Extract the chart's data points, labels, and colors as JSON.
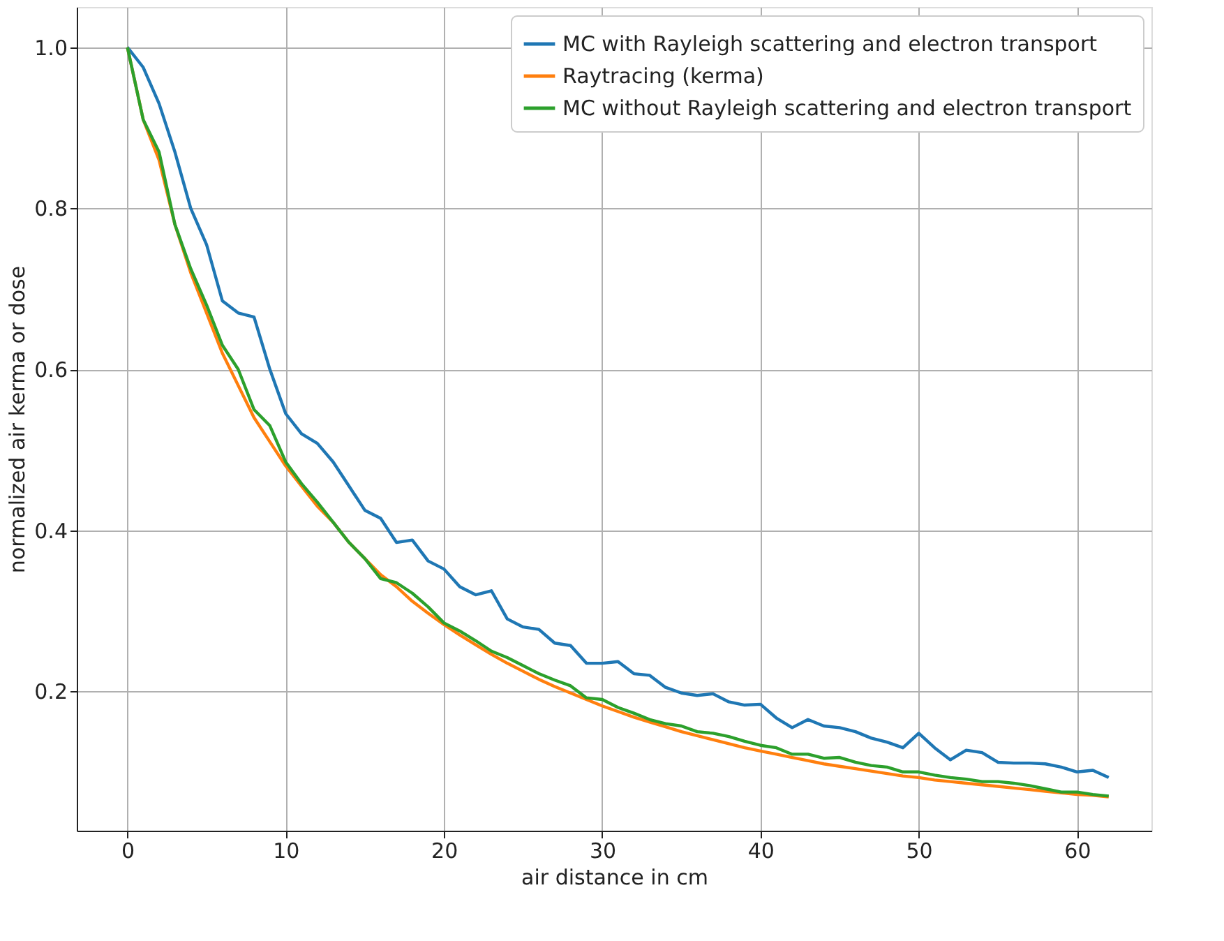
{
  "chart_data": {
    "type": "line",
    "xlabel": "air distance in cm",
    "ylabel": "normalized air kerma or dose",
    "x": [
      0,
      1,
      2,
      3,
      4,
      5,
      6,
      7,
      8,
      9,
      10,
      11,
      12,
      13,
      14,
      15,
      16,
      17,
      18,
      19,
      20,
      21,
      22,
      23,
      24,
      25,
      26,
      27,
      28,
      29,
      30,
      31,
      32,
      33,
      34,
      35,
      36,
      37,
      38,
      39,
      40,
      41,
      42,
      43,
      44,
      45,
      46,
      47,
      48,
      49,
      50,
      51,
      52,
      53,
      54,
      55,
      56,
      57,
      58,
      59,
      60,
      61,
      62
    ],
    "series": [
      {
        "name": "MC with Rayleigh scattering and electron transport",
        "color": "#1f77b4",
        "values": [
          1.0,
          0.975,
          0.93,
          0.87,
          0.8,
          0.755,
          0.685,
          0.67,
          0.665,
          0.6,
          0.545,
          0.52,
          0.508,
          0.485,
          0.455,
          0.425,
          0.415,
          0.385,
          0.388,
          0.362,
          0.352,
          0.33,
          0.32,
          0.325,
          0.29,
          0.28,
          0.277,
          0.26,
          0.257,
          0.235,
          0.235,
          0.237,
          0.222,
          0.22,
          0.205,
          0.198,
          0.195,
          0.197,
          0.187,
          0.183,
          0.184,
          0.167,
          0.155,
          0.165,
          0.157,
          0.155,
          0.15,
          0.142,
          0.137,
          0.13,
          0.148,
          0.13,
          0.115,
          0.127,
          0.124,
          0.112,
          0.111,
          0.111,
          0.11,
          0.106,
          0.1,
          0.102,
          0.093
        ]
      },
      {
        "name": "Raytracing (kerma)",
        "color": "#ff7f0e",
        "values": [
          1.0,
          0.91,
          0.86,
          0.78,
          0.72,
          0.67,
          0.62,
          0.58,
          0.54,
          0.51,
          0.48,
          0.455,
          0.43,
          0.41,
          0.385,
          0.365,
          0.345,
          0.33,
          0.312,
          0.297,
          0.283,
          0.27,
          0.258,
          0.246,
          0.235,
          0.225,
          0.215,
          0.206,
          0.198,
          0.19,
          0.182,
          0.175,
          0.168,
          0.162,
          0.156,
          0.15,
          0.145,
          0.14,
          0.135,
          0.13,
          0.126,
          0.122,
          0.118,
          0.114,
          0.11,
          0.107,
          0.104,
          0.101,
          0.098,
          0.095,
          0.093,
          0.09,
          0.088,
          0.086,
          0.084,
          0.082,
          0.08,
          0.078,
          0.076,
          0.074,
          0.072,
          0.071,
          0.069
        ]
      },
      {
        "name": "MC without Rayleigh scattering and electron transport",
        "color": "#2ca02c",
        "values": [
          1.0,
          0.91,
          0.87,
          0.78,
          0.725,
          0.68,
          0.63,
          0.6,
          0.55,
          0.53,
          0.485,
          0.458,
          0.435,
          0.41,
          0.385,
          0.365,
          0.34,
          0.335,
          0.322,
          0.305,
          0.285,
          0.275,
          0.263,
          0.25,
          0.242,
          0.232,
          0.222,
          0.214,
          0.207,
          0.192,
          0.19,
          0.18,
          0.173,
          0.165,
          0.16,
          0.157,
          0.15,
          0.148,
          0.144,
          0.138,
          0.133,
          0.13,
          0.122,
          0.122,
          0.117,
          0.118,
          0.112,
          0.108,
          0.106,
          0.1,
          0.1,
          0.096,
          0.093,
          0.091,
          0.088,
          0.088,
          0.086,
          0.083,
          0.079,
          0.075,
          0.075,
          0.072,
          0.07
        ]
      }
    ],
    "xlim": [
      -3.2,
      64.7
    ],
    "ylim": [
      0.027,
      1.05
    ],
    "xticks": [
      0,
      10,
      20,
      30,
      40,
      50,
      60
    ],
    "yticks": [
      0.2,
      0.4,
      0.6,
      0.8,
      {
        "value": 1.0,
        "label": "1.0"
      }
    ],
    "grid": true,
    "legend": "top right",
    "marker": "none",
    "line_style": "solid"
  }
}
